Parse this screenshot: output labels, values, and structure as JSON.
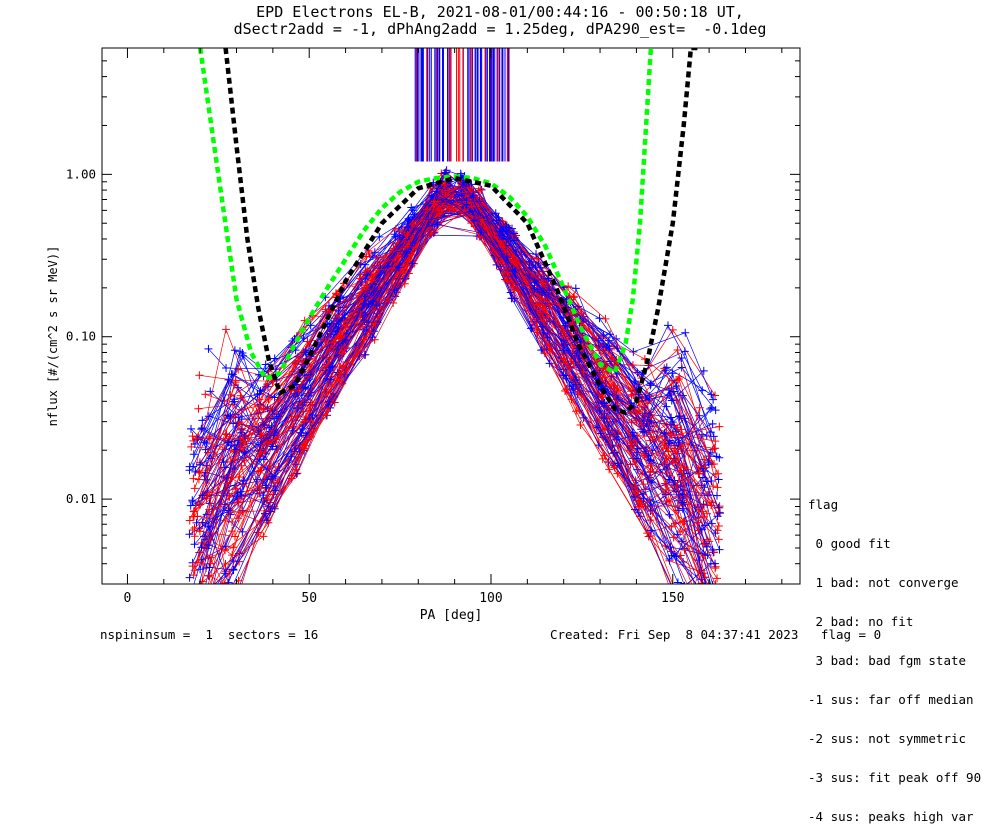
{
  "header": {
    "title_line1": "EPD Electrons EL-B, 2021-08-01/00:44:16 - 00:50:18 UT,",
    "title_line2": "dSectr2add = -1, dPhAng2add = 1.25deg, dPA290_est=  -0.1deg"
  },
  "chart_data": {
    "type": "line",
    "xlabel": "PA [deg]",
    "ylabel": "nflux [#/(cm^2 s sr MeV)]",
    "xlim": [
      -7,
      185
    ],
    "ylim": [
      0.003,
      6
    ],
    "yscale": "log",
    "x_ticks": [
      "0",
      "50",
      "100",
      "150"
    ],
    "y_ticks": [
      "0.01",
      "0.10",
      "1.00"
    ],
    "grid": false,
    "legend_position": "right",
    "series": [
      {
        "color": "#00ff00",
        "style": "dashed",
        "x": [
          20,
          25,
          30,
          34,
          38,
          42,
          46,
          50,
          55,
          60,
          65,
          70,
          75,
          80,
          85,
          90,
          95,
          100,
          105,
          110,
          115,
          120,
          125,
          130,
          134,
          137,
          139,
          141,
          144
        ],
        "y": [
          6,
          1.0,
          0.17,
          0.08,
          0.055,
          0.06,
          0.09,
          0.13,
          0.2,
          0.3,
          0.45,
          0.62,
          0.78,
          0.9,
          0.95,
          0.97,
          0.95,
          0.88,
          0.73,
          0.55,
          0.36,
          0.2,
          0.11,
          0.068,
          0.06,
          0.09,
          0.17,
          0.5,
          6
        ]
      },
      {
        "color": "#000000",
        "style": "dashed",
        "x": [
          27,
          30,
          33,
          36,
          39,
          42,
          46,
          50,
          60,
          70,
          80,
          90,
          100,
          110,
          118,
          124,
          130,
          134,
          137,
          140,
          143,
          146,
          150,
          153,
          155,
          157
        ],
        "y": [
          6,
          1.5,
          0.4,
          0.15,
          0.07,
          0.045,
          0.05,
          0.075,
          0.22,
          0.5,
          0.82,
          0.95,
          0.85,
          0.5,
          0.2,
          0.09,
          0.05,
          0.036,
          0.034,
          0.04,
          0.07,
          0.15,
          0.5,
          2,
          6,
          6
        ]
      }
    ]
  },
  "legend": {
    "title": "flag",
    "items": [
      " 0 good fit",
      " 1 bad: not converge",
      " 2 bad: no fit",
      " 3 bad: bad fgm state",
      "-1 sus: far off median",
      "-2 sus: not symmetric",
      "-3 sus: fit peak off 90",
      "-4 sus: peaks high var"
    ]
  },
  "footer": {
    "left": "nspininsum =  1  sectors = 16",
    "right": "Created: Fri Sep  8 04:37:41 2023   flag = 0"
  },
  "colors": {
    "red": "#ff0000",
    "blue": "#0000ff",
    "green": "#00ff00",
    "black": "#000000"
  }
}
